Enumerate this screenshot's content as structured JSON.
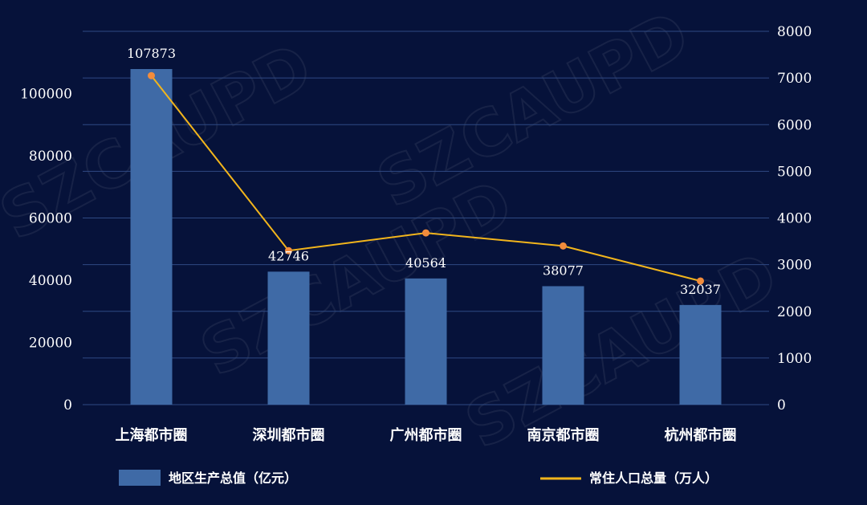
{
  "watermark": "SZCAUPD",
  "colors": {
    "background": "#06123a",
    "bar": "#3f6aa6",
    "line": "#f2b51c",
    "marker": "#f28c3c",
    "grid": "#2f4a84",
    "text": "#ffffff"
  },
  "chart_data": {
    "type": "bar",
    "categories": [
      "上海都市圈",
      "深圳都市圈",
      "广州都市圈",
      "南京都市圈",
      "杭州都市圈"
    ],
    "series": [
      {
        "name": "地区生产总值（亿元）",
        "type": "bar",
        "axis": "left",
        "values": [
          107873,
          42746,
          40564,
          38077,
          32037
        ]
      },
      {
        "name": "常住人口总量（万人）",
        "type": "line",
        "axis": "right",
        "values": [
          7050,
          3300,
          3680,
          3400,
          2650
        ]
      }
    ],
    "data_labels": [
      "107873",
      "42746",
      "40564",
      "38077",
      "32037"
    ],
    "y_left": {
      "ylim": [
        0,
        120000
      ],
      "ticks": [
        0,
        20000,
        40000,
        60000,
        80000,
        100000
      ]
    },
    "y_right": {
      "ylim": [
        0,
        8000
      ],
      "ticks": [
        0,
        1000,
        2000,
        3000,
        4000,
        5000,
        6000,
        7000,
        8000
      ]
    },
    "grid": true,
    "legend": "bottom"
  }
}
